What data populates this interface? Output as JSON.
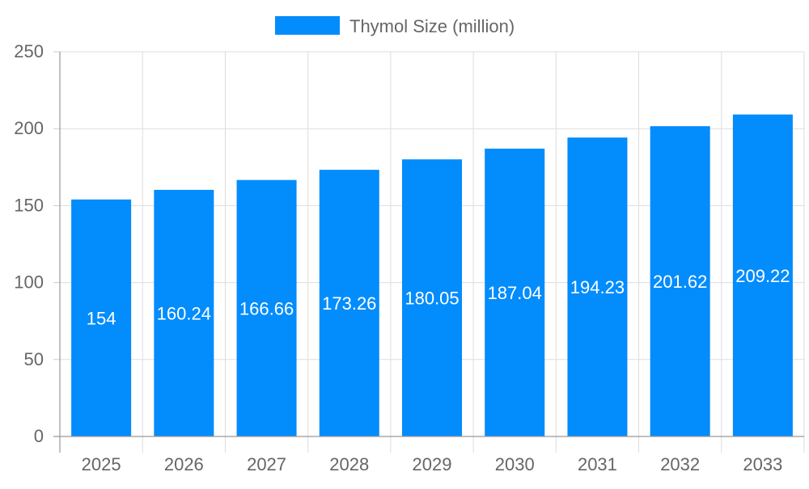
{
  "chart_data": {
    "type": "bar",
    "categories": [
      "2025",
      "2026",
      "2027",
      "2028",
      "2029",
      "2030",
      "2031",
      "2032",
      "2033"
    ],
    "series": [
      {
        "name": "Thymol Size (million)",
        "values": [
          154,
          160.24,
          166.66,
          173.26,
          180.05,
          187.04,
          194.23,
          201.62,
          209.22
        ],
        "color": "#038cfc"
      }
    ],
    "data_labels": [
      "154",
      "160.24",
      "166.66",
      "173.26",
      "180.05",
      "187.04",
      "194.23",
      "201.62",
      "209.22"
    ],
    "yticks": [
      "0",
      "50",
      "100",
      "150",
      "200",
      "250"
    ],
    "ylim": [
      0,
      250
    ],
    "grid": true,
    "legend_position": "top-center",
    "title": "",
    "xlabel": "",
    "ylabel": ""
  }
}
